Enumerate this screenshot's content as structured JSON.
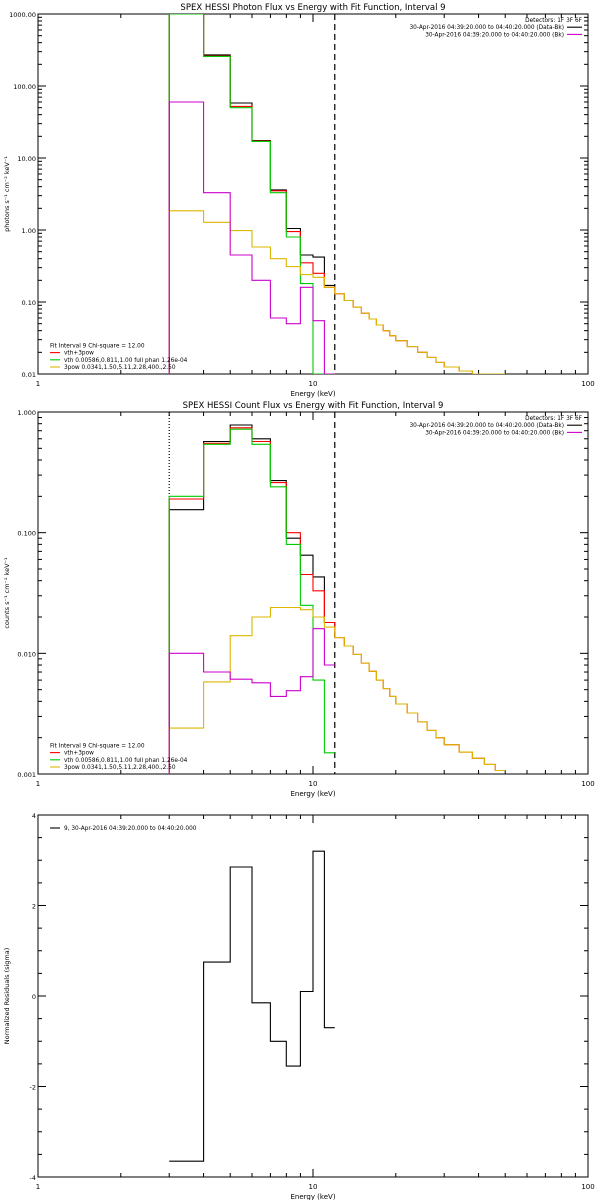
{
  "colors": {
    "black": "#000000",
    "red": "#ff0000",
    "green": "#00cc00",
    "magenta": "#cc00cc",
    "yellow": "#ddb600",
    "orange": "#ff8800"
  },
  "chart_data": [
    {
      "type": "line",
      "title": "SPEX HESSI Photon Flux vs Energy with Fit Function, Interval 9",
      "xlabel": "Energy (keV)",
      "ylabel": "photons s⁻¹ cm⁻² keV⁻¹",
      "xscale": "log",
      "yscale": "log",
      "xlim": [
        1,
        100
      ],
      "ylim": [
        0.01,
        1000
      ],
      "xticks": [
        {
          "v": 1,
          "label": "1"
        },
        {
          "v": 10,
          "label": "10"
        },
        {
          "v": 100,
          "label": "100"
        }
      ],
      "yticks": [
        {
          "v": 0.01,
          "label": "0.01"
        },
        {
          "v": 0.1,
          "label": "0.10"
        },
        {
          "v": 1,
          "label": "1.00"
        },
        {
          "v": 10,
          "label": "10.00"
        },
        {
          "v": 100,
          "label": "100.00"
        },
        {
          "v": 1000,
          "label": "1000.00"
        }
      ],
      "vlines": [
        {
          "x": 3.0,
          "style": "dotted",
          "color": "orange"
        },
        {
          "x": 12.0,
          "style": "dashed",
          "color": "black"
        }
      ],
      "legend_top_right": [
        {
          "text": "Detectors: 1F 3F 6F",
          "color": "black",
          "marker": ""
        },
        {
          "text": "30-Apr-2016 04:39:20.000 to 04:40:20.000 (Data-Bk)",
          "color": "black",
          "marker": "line"
        },
        {
          "text": "30-Apr-2016 04:39:20.000 to 04:40:20.000 (Bk)",
          "color": "magenta",
          "marker": "line"
        }
      ],
      "legend_bottom_left": [
        {
          "text": "Fit Interval 9   Chi-square = 12.00",
          "color": "black",
          "marker": ""
        },
        {
          "text": "vth+3pow",
          "color": "red",
          "marker": "line"
        },
        {
          "text": "vth 0.00586,0.811,1.00  full phan 1.26e-04",
          "color": "green",
          "marker": "line"
        },
        {
          "text": "3pow 0.0341,1.50,5.11,2.28,400.,2.50",
          "color": "yellow",
          "marker": "line"
        }
      ],
      "edges": [
        3.0,
        4.0,
        5.0,
        6.0,
        7.0,
        8.0,
        9.0,
        10.0,
        11.0,
        12.0,
        13.0,
        14.0,
        15.0,
        16.0,
        17.0,
        18.0,
        19.0,
        20.0,
        22.0,
        24.0,
        26.0,
        28.0,
        30.0,
        34.0,
        38.0,
        42.0,
        46.0,
        50.0
      ],
      "series": [
        {
          "name": "30-Apr-2016 04:39:20.000 to 04:40:20.000 (Data-Bk)",
          "color": "black",
          "values": [
            1000,
            270,
            58,
            17.5,
            3.6,
            1.05,
            0.45,
            0.42,
            0.17,
            null,
            null,
            null,
            null,
            null,
            null,
            null,
            null,
            null,
            null,
            null,
            null,
            null,
            null,
            null,
            null,
            null,
            null
          ]
        },
        {
          "name": "vth+3pow",
          "color": "red",
          "values": [
            1000,
            260,
            52,
            17.2,
            3.5,
            0.95,
            0.35,
            0.25,
            0.16,
            0.13,
            0.105,
            0.085,
            0.07,
            0.058,
            0.048,
            0.04,
            0.034,
            0.029,
            0.024,
            0.02,
            0.017,
            0.0145,
            0.0125,
            0.011,
            0.0098,
            0.0088,
            0.0079
          ]
        },
        {
          "name": "vth 0.00586,0.811,1.00  full phan 1.26e-04",
          "color": "green",
          "values": [
            1000,
            258,
            50,
            17,
            3.3,
            0.8,
            0.18,
            0.01,
            0.01,
            null,
            null,
            null,
            null,
            null,
            null,
            null,
            null,
            null,
            null,
            null,
            null,
            null,
            null,
            null,
            null,
            null,
            null
          ]
        },
        {
          "name": "3pow 0.0341,1.50,5.11,2.28,400.,2.50",
          "color": "yellow",
          "values": [
            1.85,
            1.28,
            0.98,
            0.58,
            0.4,
            0.31,
            0.24,
            0.22,
            0.16,
            0.13,
            0.105,
            0.085,
            0.07,
            0.058,
            0.048,
            0.04,
            0.034,
            0.029,
            0.024,
            0.02,
            0.017,
            0.0145,
            0.0125,
            0.011,
            0.0098,
            0.0088,
            0.0079
          ]
        },
        {
          "name": "30-Apr-2016 04:39:20.000 to 04:40:20.000 (Bk)",
          "color": "magenta",
          "values": [
            60,
            3.3,
            0.45,
            0.2,
            0.06,
            0.05,
            0.16,
            0.055,
            0.01,
            null,
            null,
            null,
            null,
            null,
            null,
            null,
            null,
            null,
            null,
            null,
            null,
            null,
            null,
            null,
            null,
            null,
            null
          ]
        }
      ]
    },
    {
      "type": "line",
      "title": "SPEX HESSI Count Flux vs Energy with Fit Function, Interval 9",
      "xlabel": "Energy (keV)",
      "ylabel": "counts s⁻¹ cm⁻² keV⁻¹",
      "xscale": "log",
      "yscale": "log",
      "xlim": [
        1,
        100
      ],
      "ylim": [
        0.001,
        1
      ],
      "xticks": [
        {
          "v": 1,
          "label": "1"
        },
        {
          "v": 10,
          "label": "10"
        },
        {
          "v": 100,
          "label": "100"
        }
      ],
      "yticks": [
        {
          "v": 0.001,
          "label": "0.001"
        },
        {
          "v": 0.01,
          "label": "0.010"
        },
        {
          "v": 0.1,
          "label": "0.100"
        },
        {
          "v": 1,
          "label": "1.000"
        }
      ],
      "vlines": [
        {
          "x": 3.0,
          "style": "dotted",
          "color": "black"
        },
        {
          "x": 12.0,
          "style": "dashed",
          "color": "black"
        }
      ],
      "legend_top_right": [
        {
          "text": "Detectors: 1F 3F 6F",
          "color": "black",
          "marker": ""
        },
        {
          "text": "30-Apr-2016 04:39:20.000 to 04:40:20.000 (Data-Bk)",
          "color": "black",
          "marker": "line"
        },
        {
          "text": "30-Apr-2016 04:39:20.000 to 04:40:20.000 (Bk)",
          "color": "magenta",
          "marker": "line"
        }
      ],
      "legend_bottom_left": [
        {
          "text": "Fit Interval 9   Chi-square = 12.00",
          "color": "black",
          "marker": ""
        },
        {
          "text": "vth+3pow",
          "color": "red",
          "marker": "line"
        },
        {
          "text": "vth 0.00586,0.811,1.00  full phan 1.26e-04",
          "color": "green",
          "marker": "line"
        },
        {
          "text": "3pow 0.0341,1.50,5.11,2.28,400.,2.50",
          "color": "yellow",
          "marker": "line"
        }
      ],
      "edges": [
        3.0,
        4.0,
        5.0,
        6.0,
        7.0,
        8.0,
        9.0,
        10.0,
        11.0,
        12.0,
        13.0,
        14.0,
        15.0,
        16.0,
        17.0,
        18.0,
        19.0,
        20.0,
        22.0,
        24.0,
        26.0,
        28.0,
        30.0,
        34.0,
        38.0,
        42.0,
        46.0,
        50.0
      ],
      "series": [
        {
          "name": "30-Apr-2016 04:39:20.000 to 04:40:20.000 (Data-Bk)",
          "color": "black",
          "values": [
            0.155,
            0.57,
            0.78,
            0.6,
            0.27,
            0.09,
            0.065,
            0.043,
            0.018,
            null,
            null,
            null,
            null,
            null,
            null,
            null,
            null,
            null,
            null,
            null,
            null,
            null,
            null,
            null,
            null,
            null,
            null
          ]
        },
        {
          "name": "vth+3pow",
          "color": "red",
          "values": [
            0.19,
            0.55,
            0.74,
            0.57,
            0.26,
            0.1,
            0.045,
            0.033,
            0.018,
            0.0135,
            0.0115,
            0.0098,
            0.0083,
            0.0071,
            0.006,
            0.0051,
            0.0044,
            0.0038,
            0.0032,
            0.0027,
            0.0023,
            0.002,
            0.00175,
            0.00152,
            0.00135,
            0.0012,
            0.00107
          ]
        },
        {
          "name": "vth 0.00586,0.811,1.00  full phan 1.26e-04",
          "color": "green",
          "values": [
            0.2,
            0.54,
            0.72,
            0.54,
            0.24,
            0.08,
            0.025,
            0.006,
            0.0015,
            null,
            null,
            null,
            null,
            null,
            null,
            null,
            null,
            null,
            null,
            null,
            null,
            null,
            null,
            null,
            null,
            null,
            null
          ]
        },
        {
          "name": "3pow 0.0341,1.50,5.11,2.28,400.,2.50",
          "color": "yellow",
          "values": [
            0.0024,
            0.0058,
            0.014,
            0.02,
            0.024,
            0.024,
            0.023,
            0.02,
            0.0165,
            0.0135,
            0.0115,
            0.0098,
            0.0083,
            0.0071,
            0.006,
            0.0051,
            0.0044,
            0.0038,
            0.0032,
            0.0027,
            0.0023,
            0.002,
            0.00175,
            0.00152,
            0.00135,
            0.0012,
            0.00107
          ]
        },
        {
          "name": "30-Apr-2016 04:39:20.000 to 04:40:20.000 (Bk)",
          "color": "magenta",
          "values": [
            0.01,
            0.007,
            0.0061,
            0.0057,
            0.0044,
            0.0049,
            0.0064,
            0.016,
            0.008,
            null,
            null,
            null,
            null,
            null,
            null,
            null,
            null,
            null,
            null,
            null,
            null,
            null,
            null,
            null,
            null,
            null,
            null
          ]
        }
      ]
    },
    {
      "type": "line",
      "title": "",
      "xlabel": "Energy (keV)",
      "ylabel": "Normalized Residuals (sigma)",
      "xscale": "log",
      "yscale": "linear",
      "xlim": [
        1,
        100
      ],
      "ylim": [
        -4,
        4
      ],
      "xticks": [
        {
          "v": 1,
          "label": "1"
        },
        {
          "v": 10,
          "label": "10"
        },
        {
          "v": 100,
          "label": "100"
        }
      ],
      "yticks": [
        {
          "v": -4,
          "label": "-4"
        },
        {
          "v": -2,
          "label": "-2"
        },
        {
          "v": 0,
          "label": "0"
        },
        {
          "v": 2,
          "label": "2"
        },
        {
          "v": 4,
          "label": "4"
        }
      ],
      "vlines": [],
      "legend_top_right": [],
      "legend_top_left": [
        {
          "text": "9, 30-Apr-2016 04:39:20.000 to 04:40:20.000",
          "color": "black",
          "marker": "line"
        }
      ],
      "legend_bottom_left": [],
      "edges": [
        3.0,
        4.0,
        5.0,
        6.0,
        7.0,
        8.0,
        9.0,
        10.0,
        11.0,
        12.0
      ],
      "series": [
        {
          "name": "9, 30-Apr-2016 04:39:20.000 to 04:40:20.000",
          "color": "black",
          "values": [
            -3.65,
            0.75,
            2.85,
            -0.15,
            -1.0,
            -1.55,
            0.1,
            3.2,
            -0.7
          ]
        }
      ]
    }
  ]
}
